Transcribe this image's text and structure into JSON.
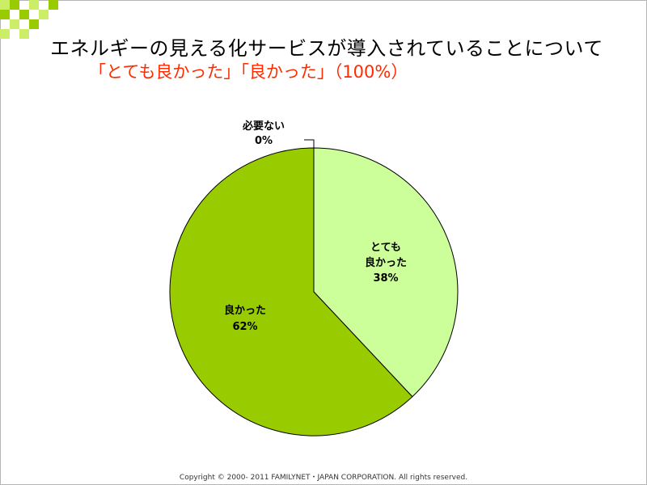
{
  "slide": {
    "title": "エネルギーの見える化サービスが導入されていることについて",
    "subtitle": "「とても良かった」「良かった」（100%）",
    "footer": "Copyright © 2000- 2011 FAMILYNET・JAPAN CORPORATION. All rights reserved."
  },
  "colors": {
    "deco_green": "#99cc00",
    "deco_light": "#ccee66",
    "subtitle_red": "#ff2a00"
  },
  "chart_data": {
    "type": "pie",
    "title": "",
    "start_angle_deg": 0,
    "direction": "clockwise",
    "slices": [
      {
        "label_lines": [
          "とても",
          "良かった"
        ],
        "value": 38,
        "value_label": "38%",
        "color": "#ccff99"
      },
      {
        "label_lines": [
          "良かった"
        ],
        "value": 62,
        "value_label": "62%",
        "color": "#99cc00"
      },
      {
        "label_lines": [
          "必要ない"
        ],
        "value": 0,
        "value_label": "0%",
        "color": "#ffffff"
      }
    ]
  }
}
